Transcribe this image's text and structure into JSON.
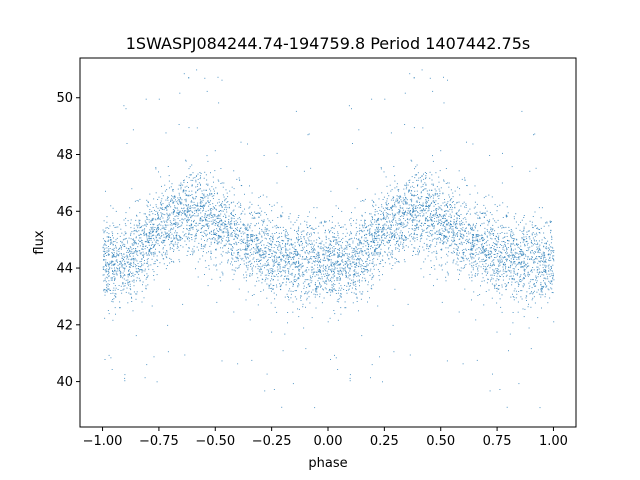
{
  "chart_data": {
    "type": "scatter",
    "title": "1SWASPJ084244.74-194759.8 Period 1407442.75s",
    "xlabel": "phase",
    "ylabel": "flux",
    "xlim": [
      -1.1,
      1.1
    ],
    "ylim": [
      38.4,
      51.4
    ],
    "xticks": [
      -1.0,
      -0.75,
      -0.5,
      -0.25,
      0.0,
      0.25,
      0.5,
      0.75,
      1.0
    ],
    "xtick_labels": [
      "−1.00",
      "−0.75",
      "−0.50",
      "−0.25",
      "0.00",
      "0.25",
      "0.50",
      "0.75",
      "1.00"
    ],
    "yticks": [
      40,
      42,
      44,
      46,
      48,
      50
    ],
    "ytick_labels": [
      "40",
      "42",
      "44",
      "46",
      "48",
      "50"
    ],
    "grid": false,
    "color": "#1f77b4",
    "series": [
      {
        "profile_x": [
          0.0,
          0.05,
          0.1,
          0.15,
          0.2,
          0.25,
          0.3,
          0.35,
          0.4,
          0.45,
          0.5,
          0.55,
          0.6,
          0.65,
          0.7,
          0.75,
          0.8,
          0.85,
          0.9,
          0.95,
          1.0
        ],
        "profile_y": [
          44.2,
          44.1,
          44.3,
          44.6,
          45.0,
          45.4,
          45.6,
          45.9,
          46.0,
          45.9,
          45.6,
          45.3,
          45.1,
          44.9,
          44.7,
          44.5,
          44.4,
          44.3,
          44.2,
          44.1,
          44.2
        ],
        "scatter_std": 0.75
      }
    ]
  }
}
